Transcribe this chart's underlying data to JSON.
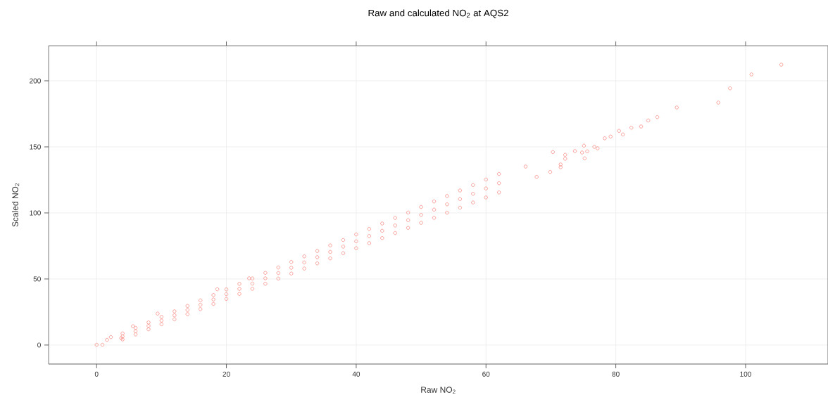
{
  "chart_data": {
    "type": "scatter",
    "title": "Raw and calculated NO$_{2}$ at AQS2",
    "xlabel": "Raw NO$_{2}$",
    "ylabel": "Scaled NO$_{2}$",
    "x": [
      0,
      0.9,
      1.6,
      2.2,
      3.8,
      5.6,
      9.4,
      18.6,
      23.5,
      4,
      4,
      4,
      6,
      6,
      6,
      8,
      8,
      8,
      10,
      10,
      10,
      12,
      12,
      12,
      14,
      14,
      14,
      16,
      16,
      16,
      18,
      18,
      18,
      20,
      20,
      20,
      22,
      22,
      22,
      24,
      24,
      24,
      26,
      26,
      26,
      28,
      28,
      28,
      30,
      30,
      30,
      32,
      32,
      32,
      34,
      34,
      34,
      36,
      36,
      36,
      38,
      38,
      38,
      40,
      40,
      40,
      42,
      42,
      42,
      44,
      44,
      44,
      46,
      46,
      46,
      48,
      48,
      48,
      50,
      50,
      50,
      52,
      52,
      52,
      54,
      54,
      54,
      56,
      56,
      56,
      58,
      58,
      58,
      60,
      60,
      60,
      62,
      62,
      62,
      66.1,
      67.8,
      69.9,
      70.3,
      71.5,
      71.5,
      72.2,
      72.2,
      73.7,
      74.8,
      75.1,
      75.2,
      75.6,
      76.7,
      77.2,
      78.3,
      79.2,
      80.5,
      81.1,
      82.4,
      83.9,
      85.0,
      86.4,
      89.4,
      95.8,
      97.6,
      100.9,
      105.5
    ],
    "values": [
      0.2,
      0.2,
      3.9,
      6.0,
      5.2,
      14.2,
      23.8,
      42.2,
      50.5,
      6.5,
      8.8,
      4.2,
      10.5,
      13.0,
      8.0,
      14.5,
      17.1,
      11.9,
      18.5,
      21.3,
      15.7,
      22.5,
      25.5,
      19.5,
      26.5,
      29.6,
      23.4,
      30.5,
      33.8,
      27.2,
      34.5,
      37.9,
      31.1,
      38.5,
      42.1,
      34.9,
      42.5,
      46.3,
      38.7,
      46.5,
      50.4,
      42.6,
      50.5,
      54.6,
      46.4,
      54.5,
      58.7,
      50.3,
      58.5,
      62.9,
      54.1,
      62.5,
      67.1,
      57.9,
      66.5,
      71.2,
      61.8,
      70.5,
      75.4,
      65.6,
      74.5,
      79.5,
      69.5,
      78.5,
      83.7,
      73.3,
      82.5,
      87.9,
      77.1,
      86.5,
      92.0,
      81.0,
      90.5,
      96.2,
      84.8,
      94.5,
      100.3,
      88.7,
      98.5,
      104.5,
      92.5,
      102.5,
      108.7,
      96.3,
      106.5,
      112.8,
      100.2,
      110.5,
      117.0,
      104.0,
      114.5,
      121.1,
      107.9,
      118.5,
      125.3,
      111.7,
      122.5,
      129.5,
      115.5,
      135.1,
      127.3,
      131,
      146.1,
      136.7,
      134.6,
      144,
      141,
      146.8,
      145.7,
      150.9,
      141.3,
      146.6,
      150,
      148.9,
      156.5,
      157.8,
      162.1,
      159.4,
      164.5,
      165.4,
      170.0,
      172.5,
      179.8,
      183.5,
      194.3,
      204.8,
      212.2
    ],
    "color": "#f8766d",
    "marker": "circle",
    "grid": true,
    "xlim": [
      -7.4,
      112.7
    ],
    "ylim": [
      -14.4,
      226.6
    ],
    "xticks": [
      0,
      20,
      40,
      60,
      80,
      100
    ],
    "yticks": [
      0,
      50,
      100,
      150,
      200
    ]
  }
}
